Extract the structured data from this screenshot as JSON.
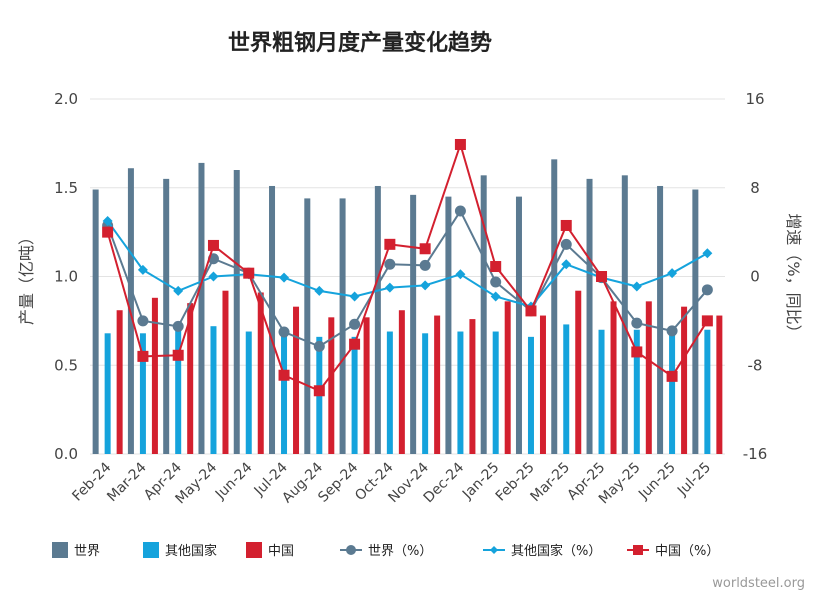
{
  "chart_data": {
    "type": "bar",
    "title": "世界粗钢月度产量变化趋势",
    "ylabel_left": "产量（亿吨）",
    "ylabel_right": "增速（%，同比）",
    "categories": [
      "Feb-24",
      "Mar-24",
      "Apr-24",
      "May-24",
      "Jun-24",
      "Jul-24",
      "Aug-24",
      "Sep-24",
      "Oct-24",
      "Nov-24",
      "Dec-24",
      "Jan-25",
      "Feb-25",
      "Mar-25",
      "Apr-25",
      "May-25",
      "Jun-25",
      "Jul-25"
    ],
    "ylim_left": [
      0,
      2.0
    ],
    "yticks_left": [
      "0.0",
      "0.5",
      "1.0",
      "1.5",
      "2.0"
    ],
    "ylim_right": [
      -16,
      16
    ],
    "yticks_right": [
      "-16",
      "-8",
      "0",
      "8",
      "16"
    ],
    "grid": true,
    "legend_position": "bottom",
    "series": [
      {
        "name": "世界",
        "kind": "bar",
        "axis": "left",
        "color": "#5b7a91",
        "values": [
          1.49,
          1.61,
          1.55,
          1.64,
          1.6,
          1.51,
          1.44,
          1.44,
          1.51,
          1.46,
          1.45,
          1.57,
          1.45,
          1.66,
          1.55,
          1.57,
          1.51,
          1.49
        ]
      },
      {
        "name": "其他国家",
        "kind": "bar",
        "axis": "left",
        "color": "#15a3dc",
        "values": [
          0.68,
          0.68,
          0.71,
          0.72,
          0.69,
          0.69,
          0.66,
          0.66,
          0.69,
          0.68,
          0.69,
          0.69,
          0.66,
          0.73,
          0.7,
          0.7,
          0.69,
          0.7
        ]
      },
      {
        "name": "中国",
        "kind": "bar",
        "axis": "left",
        "color": "#d3202f",
        "values": [
          0.81,
          0.88,
          0.85,
          0.92,
          0.91,
          0.83,
          0.77,
          0.77,
          0.81,
          0.78,
          0.76,
          0.86,
          0.78,
          0.92,
          0.86,
          0.86,
          0.83,
          0.78
        ]
      },
      {
        "name": "世界（%）",
        "kind": "line",
        "axis": "right",
        "color": "#5b7a91",
        "marker": "circle",
        "values": [
          4.6,
          -4.0,
          -4.5,
          1.6,
          0.3,
          -5.0,
          -6.3,
          -4.3,
          1.1,
          1.0,
          5.9,
          -0.5,
          -3.1,
          2.9,
          -0.1,
          -4.2,
          -4.9,
          -1.2
        ]
      },
      {
        "name": "其他国家（%）",
        "kind": "line",
        "axis": "right",
        "color": "#15a3dc",
        "marker": "diamond",
        "values": [
          5.0,
          0.6,
          -1.3,
          0.0,
          0.2,
          -0.1,
          -1.3,
          -1.8,
          -1.0,
          -0.8,
          0.2,
          -1.8,
          -2.7,
          1.1,
          -0.1,
          -0.9,
          0.3,
          2.1
        ]
      },
      {
        "name": "中国（%）",
        "kind": "line",
        "axis": "right",
        "color": "#d3202f",
        "marker": "square",
        "values": [
          4.0,
          -7.2,
          -7.1,
          2.8,
          0.3,
          -8.9,
          -10.3,
          -6.1,
          2.9,
          2.5,
          11.9,
          0.9,
          -3.1,
          4.6,
          0.0,
          -6.8,
          -9.0,
          -4.0
        ]
      }
    ]
  },
  "credit": "worldsteel.org"
}
